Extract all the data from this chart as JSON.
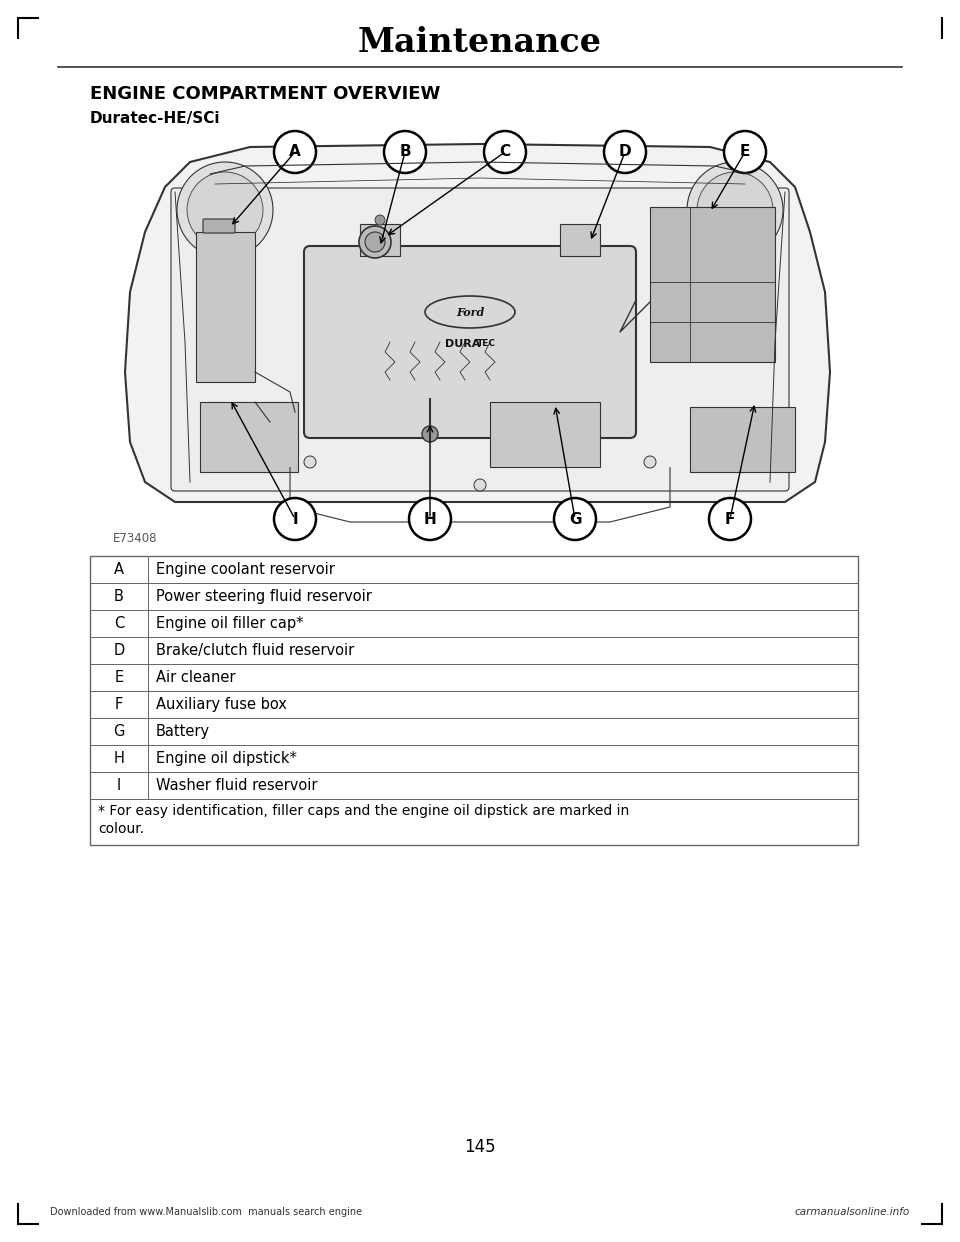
{
  "page_title": "Maintenance",
  "section_title": "ENGINE COMPARTMENT OVERVIEW",
  "subsection_title": "Duratec-HE/SCi",
  "figure_code": "E73408",
  "table_rows": [
    {
      "label": "A",
      "description": "Engine coolant reservoir"
    },
    {
      "label": "B",
      "description": "Power steering fluid reservoir"
    },
    {
      "label": "C",
      "description": "Engine oil filler cap*"
    },
    {
      "label": "D",
      "description": "Brake/clutch fluid reservoir"
    },
    {
      "label": "E",
      "description": "Air cleaner"
    },
    {
      "label": "F",
      "description": "Auxiliary fuse box"
    },
    {
      "label": "G",
      "description": "Battery"
    },
    {
      "label": "H",
      "description": "Engine oil dipstick*"
    },
    {
      "label": "I",
      "description": "Washer fluid reservoir"
    }
  ],
  "footnote": "* For easy identification, filler caps and the engine oil dipstick are marked in\ncolour.",
  "page_number": "145",
  "footer_left": "Downloaded from www.Manualslib.com  manuals search engine",
  "footer_right": "carmanualsonline.info",
  "bg_color": "#ffffff",
  "text_color": "#000000",
  "title_color": "#000000",
  "line_color": "#000000",
  "table_border_color": "#666666",
  "diagram_bg": "#f5f5f5",
  "diagram_line": "#333333"
}
